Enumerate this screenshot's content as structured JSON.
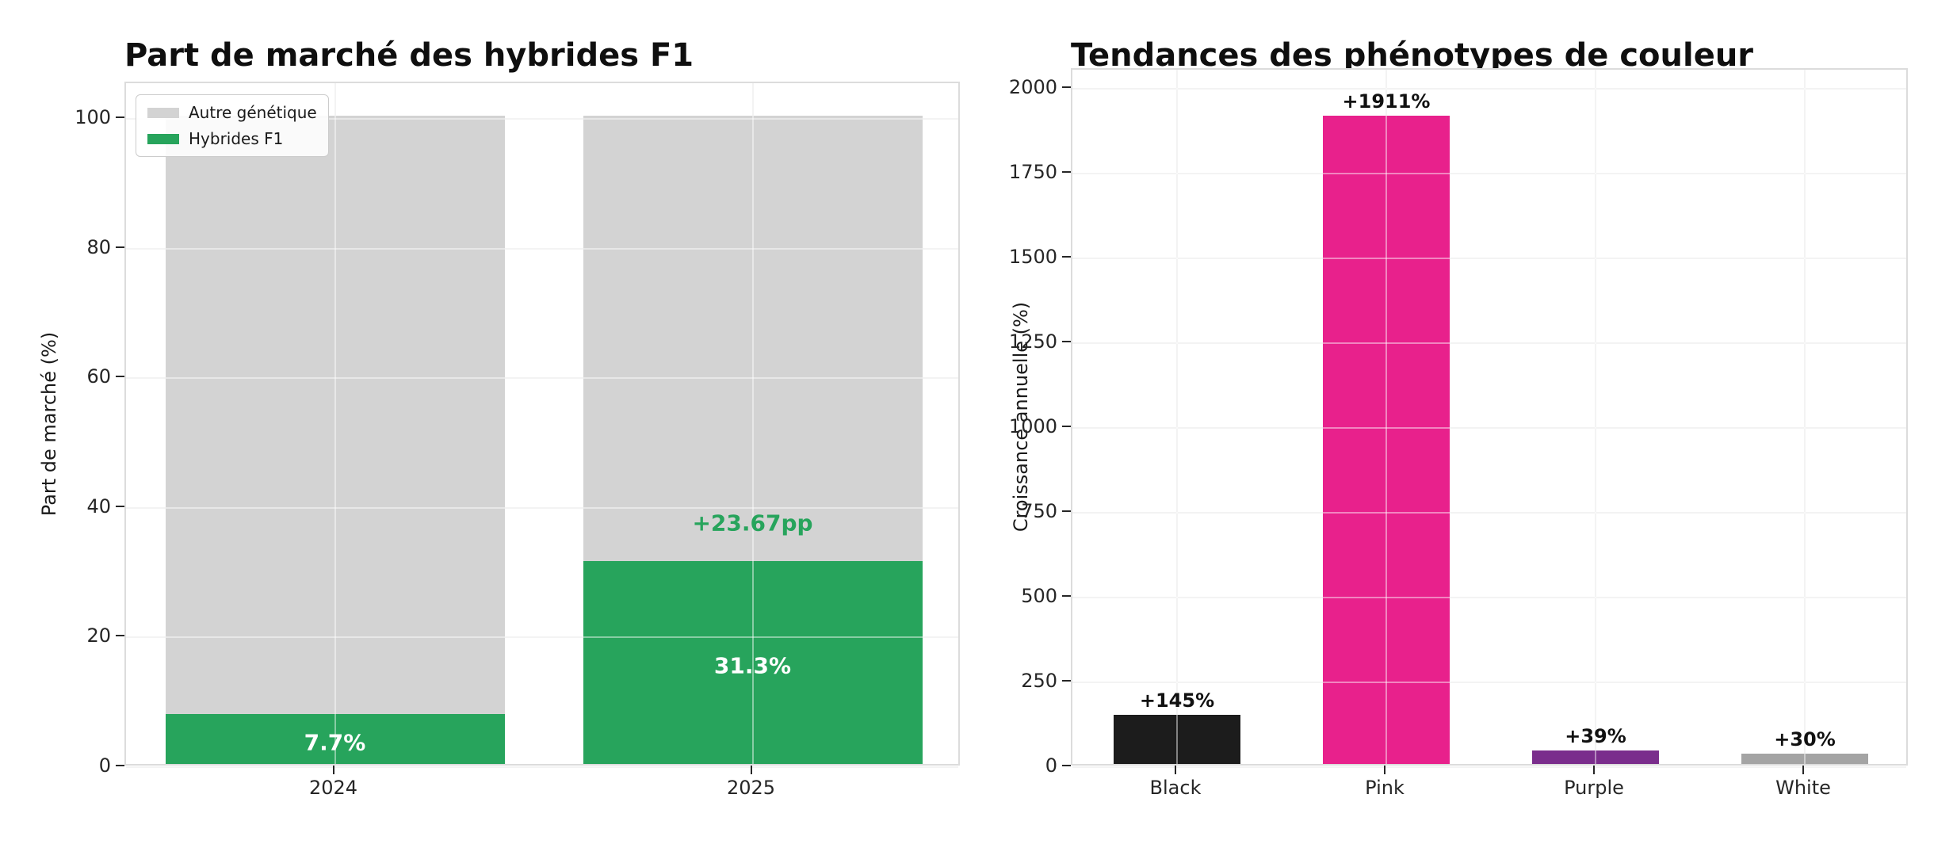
{
  "figure": {
    "background": "#ffffff"
  },
  "chart_data": [
    {
      "type": "bar",
      "subtype": "stacked",
      "title": "Part de marché des hybrides F1",
      "ylabel": "Part de marché (%)",
      "categories": [
        "2024",
        "2025"
      ],
      "series": [
        {
          "name": "Hybrides F1",
          "color": "#27a45c",
          "values": [
            7.7,
            31.3
          ]
        },
        {
          "name": "Autre génétique",
          "color": "#d3d3d3",
          "values": [
            92.3,
            68.7
          ]
        }
      ],
      "inside_labels": [
        {
          "text": "7.7%",
          "category_index": 0,
          "color": "#ffffff"
        },
        {
          "text": "31.3%",
          "category_index": 1,
          "color": "#ffffff"
        }
      ],
      "annotation": {
        "text": "+23.67pp",
        "category_index": 1,
        "color": "#27a45c"
      },
      "yticks": [
        0,
        20,
        40,
        60,
        80,
        100
      ],
      "ylim": [
        0,
        105.5
      ],
      "grid": "on",
      "legend_position": "upper-left",
      "legend": [
        {
          "label": "Autre génétique",
          "color": "#d3d3d3"
        },
        {
          "label": "Hybrides F1",
          "color": "#27a45c"
        }
      ]
    },
    {
      "type": "bar",
      "subtype": "simple",
      "title": "Tendances des phénotypes de couleur",
      "ylabel": "Croissance annuelle (%)",
      "categories": [
        "Black",
        "Pink",
        "Purple",
        "White"
      ],
      "values": [
        145,
        1911,
        39,
        30
      ],
      "colors": [
        "#1c1c1c",
        "#e8218c",
        "#7a2d8c",
        "#a4a4a4"
      ],
      "value_labels": [
        "+145%",
        "+1911%",
        "+39%",
        "+30%"
      ],
      "yticks": [
        0,
        250,
        500,
        750,
        1000,
        1250,
        1500,
        1750,
        2000
      ],
      "ylim": [
        0,
        2056
      ],
      "grid": "on",
      "legend_position": "none"
    }
  ]
}
